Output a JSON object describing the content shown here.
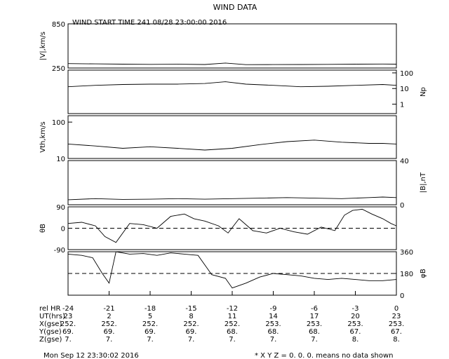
{
  "chart_data": {
    "type": "line",
    "title": "WIND DATA",
    "subtitle": "WIND START TIME 241 08/28 23:00:00 2016",
    "footer_left": "Mon Sep 12 23:30:02 2016",
    "footer_right": "* X Y Z = 0. 0. 0. means no data shown",
    "xlim": [
      -24,
      0
    ],
    "x_ticks": [
      -24,
      -21,
      -18,
      -15,
      -12,
      -9,
      -6,
      -3,
      0
    ],
    "table_rows": [
      {
        "label": "rel HR",
        "values": [
          "-24",
          "-21",
          "-18",
          "-15",
          "-12",
          "-9",
          "-6",
          "-3",
          "0"
        ]
      },
      {
        "label": "UT(hrs)",
        "values": [
          "23",
          "2",
          "5",
          "8",
          "11",
          "14",
          "17",
          "20",
          "23"
        ]
      },
      {
        "label": "X(gse)",
        "values": [
          "252.",
          "252.",
          "252.",
          "252.",
          "252.",
          "253.",
          "253.",
          "253.",
          "253."
        ]
      },
      {
        "label": "Y(gse)",
        "values": [
          "69.",
          "69.",
          "69.",
          "69.",
          "68.",
          "68.",
          "68.",
          "67.",
          "67."
        ]
      },
      {
        "label": "Z(gse)",
        "values": [
          "7.",
          "7.",
          "7.",
          "7.",
          "7.",
          "7.",
          "7.",
          "8.",
          "8."
        ]
      }
    ],
    "panels": [
      {
        "id": "speed",
        "ylabel": "|V|,km/s",
        "label_side": "left",
        "scale": "linear",
        "ylim": [
          250,
          850
        ],
        "tick_labels": [
          {
            "value": 850,
            "text": "850"
          },
          {
            "value": 250,
            "text": "250"
          }
        ],
        "x": [
          -24,
          -22,
          -20,
          -18,
          -16,
          -14,
          -12.5,
          -11,
          -9,
          -7,
          -5,
          -3,
          -1,
          0
        ],
        "values": [
          310,
          306,
          302,
          300,
          301,
          298,
          318,
          296,
          297,
          298,
          300,
          302,
          304,
          302
        ]
      },
      {
        "id": "density",
        "ylabel": "Np",
        "label_side": "right",
        "scale": "log",
        "ylim": [
          0.25,
          150
        ],
        "tick_labels": [
          {
            "value": 100,
            "text": "100"
          },
          {
            "value": 10,
            "text": "10"
          },
          {
            "value": 1,
            "text": "1"
          }
        ],
        "x": [
          -24,
          -22,
          -20,
          -18,
          -16,
          -14,
          -12.5,
          -11,
          -9,
          -7,
          -5,
          -3,
          -1,
          0
        ],
        "values": [
          13,
          16,
          18,
          19,
          19,
          21,
          27,
          19,
          16,
          13,
          14,
          16,
          18,
          16
        ]
      },
      {
        "id": "thermal",
        "ylabel": "Vth,km/s",
        "label_side": "left",
        "scale": "log",
        "ylim": [
          10,
          150
        ],
        "tick_labels": [
          {
            "value": 100,
            "text": "100"
          },
          {
            "value": 10,
            "text": "10"
          }
        ],
        "x": [
          -24,
          -22,
          -20,
          -18,
          -16,
          -14,
          -12,
          -10,
          -8,
          -6,
          -4,
          -2,
          -1,
          0
        ],
        "values": [
          25,
          22,
          19,
          21,
          19,
          17,
          19,
          24,
          29,
          32,
          28,
          26,
          26,
          25
        ]
      },
      {
        "id": "bfield",
        "ylabel": "|B|,nT",
        "label_side": "right",
        "scale": "linear",
        "ylim": [
          0,
          40
        ],
        "tick_labels": [
          {
            "value": 40,
            "text": "40"
          },
          {
            "value": 0,
            "text": "0"
          }
        ],
        "x": [
          -24,
          -22,
          -20,
          -18,
          -16,
          -14,
          -12,
          -10,
          -8,
          -6,
          -4,
          -2,
          -1,
          0
        ],
        "values": [
          4.5,
          5.5,
          4.8,
          5.0,
          5.5,
          5.0,
          5.5,
          6.0,
          6.5,
          6.0,
          5.5,
          6.5,
          7.0,
          6.5
        ]
      },
      {
        "id": "theta",
        "ylabel": "θB",
        "label_side": "left",
        "scale": "linear",
        "ylim": [
          -90,
          90
        ],
        "ref_line": 0,
        "tick_labels": [
          {
            "value": 90,
            "text": "90"
          },
          {
            "value": 0,
            "text": "0"
          },
          {
            "value": -90,
            "text": "-90"
          }
        ],
        "x": [
          -24,
          -23,
          -22,
          -21.3,
          -20.5,
          -19.5,
          -18.5,
          -17.5,
          -16.5,
          -15.5,
          -14.8,
          -14,
          -13,
          -12.3,
          -11.5,
          -10.5,
          -9.5,
          -8.5,
          -7.5,
          -6.5,
          -5.5,
          -4.5,
          -3.8,
          -3.2,
          -2.5,
          -1.8,
          -1,
          -0.4,
          0
        ],
        "values": [
          20,
          25,
          10,
          -35,
          -60,
          20,
          15,
          0,
          50,
          60,
          40,
          30,
          10,
          -20,
          40,
          -10,
          -20,
          0,
          -15,
          -25,
          5,
          -10,
          55,
          75,
          80,
          60,
          40,
          20,
          10
        ]
      },
      {
        "id": "phi",
        "ylabel": "φB",
        "label_side": "right",
        "scale": "linear",
        "ylim": [
          0,
          360
        ],
        "ref_line": 180,
        "tick_labels": [
          {
            "value": 360,
            "text": "360"
          },
          {
            "value": 180,
            "text": "180"
          },
          {
            "value": 0,
            "text": "0"
          }
        ],
        "x": [
          -24,
          -23,
          -22.2,
          -21.5,
          -21,
          -20.5,
          -19.5,
          -18.5,
          -17.5,
          -16.5,
          -15.5,
          -14.5,
          -13.5,
          -12.5,
          -12,
          -11,
          -10,
          -9,
          -8,
          -7,
          -6,
          -5,
          -4,
          -3,
          -2,
          -1,
          0
        ],
        "values": [
          340,
          330,
          310,
          180,
          100,
          360,
          340,
          345,
          330,
          350,
          340,
          330,
          170,
          140,
          60,
          100,
          150,
          180,
          170,
          160,
          140,
          130,
          140,
          130,
          120,
          120,
          130
        ]
      }
    ]
  }
}
